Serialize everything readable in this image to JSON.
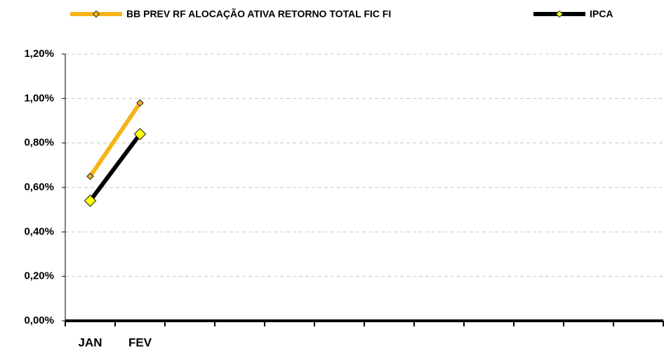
{
  "chart_data": {
    "type": "line",
    "categories": [
      "JAN",
      "FEV",
      null,
      null,
      null,
      null,
      null,
      null,
      null,
      null,
      null,
      null
    ],
    "series": [
      {
        "name": "BB PREV RF ALOCAÇÃO ATIVA RETORNO TOTAL FIC FI",
        "color": "#f5b41a",
        "marker_color": "#f5b41a",
        "marker_size": 9,
        "values": [
          0.65,
          0.98,
          null,
          null,
          null,
          null,
          null,
          null,
          null,
          null,
          null,
          null
        ]
      },
      {
        "name": "IPCA",
        "color": "#000000",
        "marker_color": "#ffff00",
        "marker_size": 16,
        "values": [
          0.54,
          0.84,
          null,
          null,
          null,
          null,
          null,
          null,
          null,
          null,
          null,
          null
        ]
      }
    ],
    "ylim": [
      0,
      1.2
    ],
    "yticks": [
      {
        "value": 0,
        "label": "0,00%"
      },
      {
        "value": 0.2,
        "label": "0,20%"
      },
      {
        "value": 0.4,
        "label": "0,40%"
      },
      {
        "value": 0.6,
        "label": "0,60%"
      },
      {
        "value": 0.8,
        "label": "0,80%"
      },
      {
        "value": 1.0,
        "label": "1,00%"
      },
      {
        "value": 1.2,
        "label": "1,20%"
      }
    ],
    "grid": true,
    "legend": "top"
  }
}
